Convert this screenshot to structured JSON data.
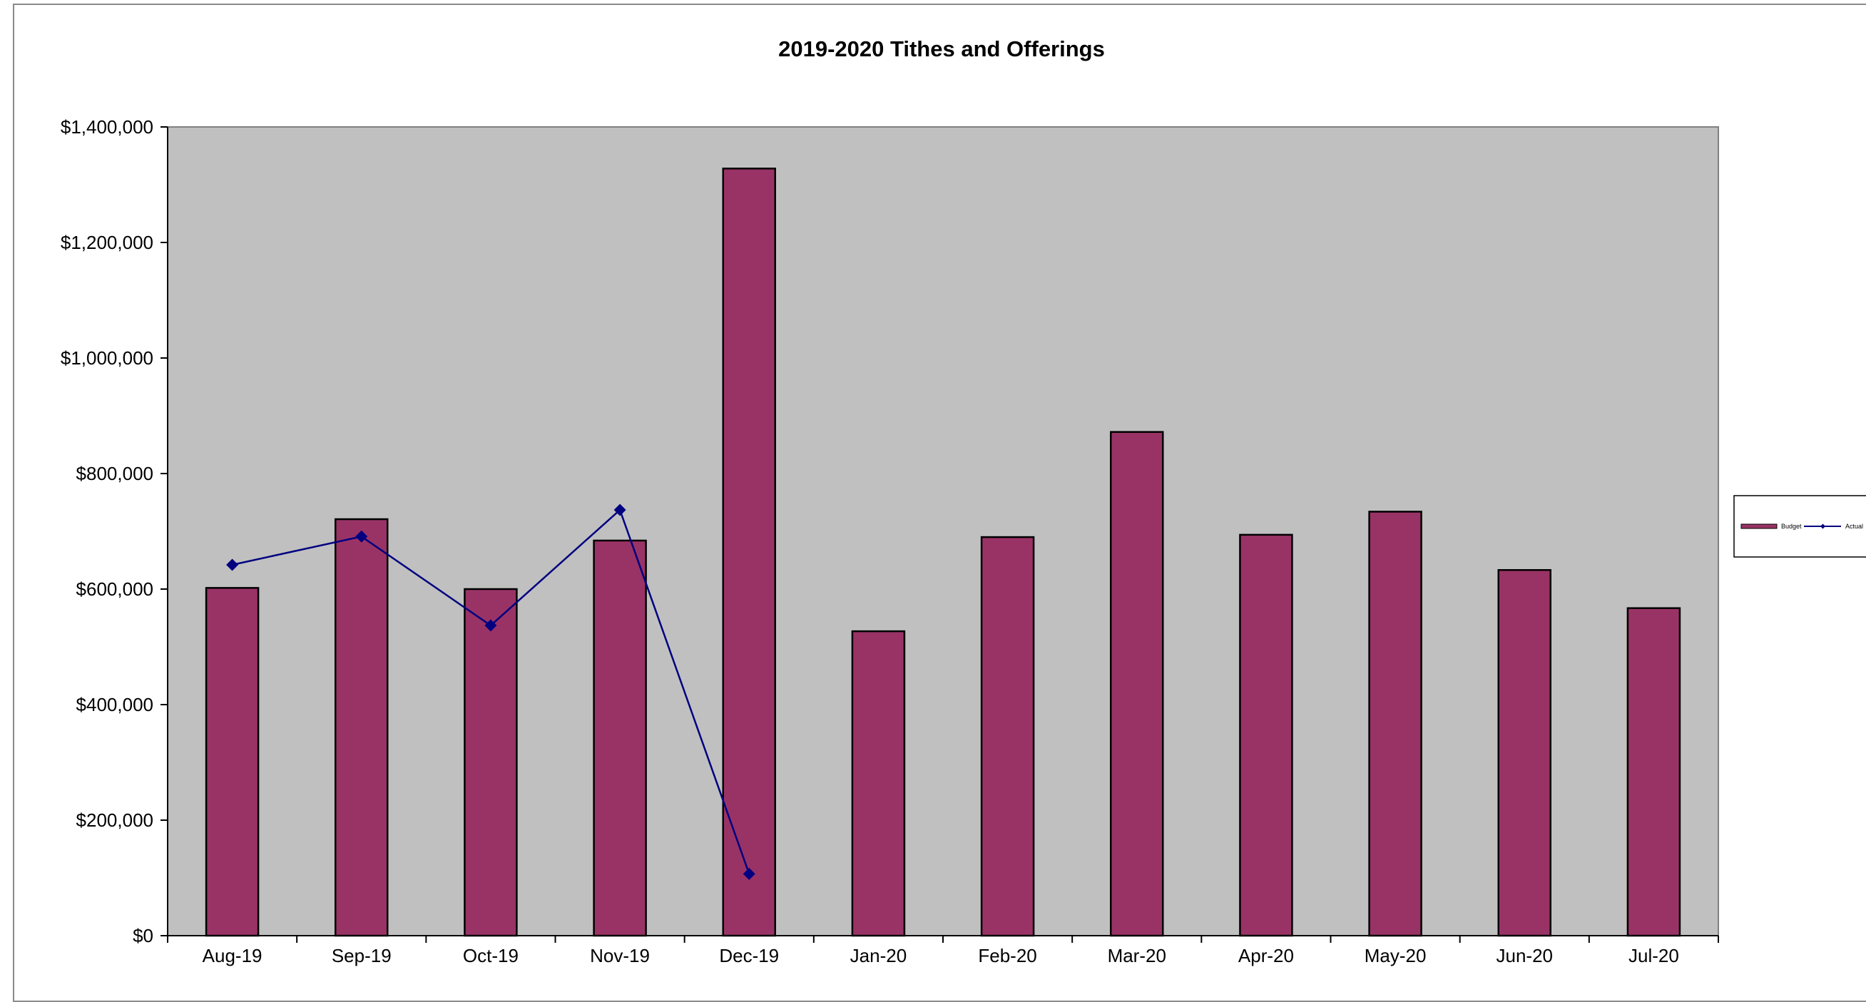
{
  "chart_data": {
    "type": "bar",
    "title": "2019-2020 Tithes and Offerings",
    "xlabel": "",
    "ylabel": "",
    "categories": [
      "Aug-19",
      "Sep-19",
      "Oct-19",
      "Nov-19",
      "Dec-19",
      "Jan-20",
      "Feb-20",
      "Mar-20",
      "Apr-20",
      "May-20",
      "Jun-20",
      "Jul-20"
    ],
    "y_tick_labels": [
      "$0",
      "$200,000",
      "$400,000",
      "$600,000",
      "$800,000",
      "$1,000,000",
      "$1,200,000",
      "$1,400,000"
    ],
    "ylim": [
      0,
      1400000
    ],
    "y_tick_step": 200000,
    "grid": false,
    "legend_position": "right",
    "series": [
      {
        "name": "Budget",
        "type": "bar",
        "color": "#993366",
        "values": [
          602000,
          721000,
          600000,
          684000,
          1328000,
          527000,
          690000,
          872000,
          694000,
          734000,
          633000,
          567000
        ]
      },
      {
        "name": "Actual",
        "type": "line",
        "color": "#000080",
        "values": [
          642000,
          691000,
          537000,
          737000,
          107000,
          null,
          null,
          null,
          null,
          null,
          null,
          null
        ]
      }
    ],
    "plot_background": "#c0c0c0"
  }
}
